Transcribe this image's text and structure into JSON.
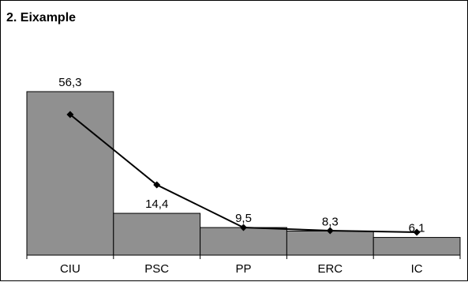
{
  "chart_data": {
    "type": "bar",
    "title": "2. Eixample",
    "categories": [
      "CIU",
      "PSC",
      "PP",
      "ERC",
      "IC"
    ],
    "values": [
      56.3,
      14.4,
      9.5,
      8.3,
      6.1
    ],
    "value_labels": [
      "56,3",
      "14,4",
      "9,5",
      "8,3",
      "6,1"
    ],
    "line_values": [
      56.3,
      14.4,
      9.5,
      8.3,
      6.1
    ],
    "ylim": [
      0,
      70
    ],
    "grid": false,
    "legend": "none",
    "colors": {
      "bar_fill": "#909090",
      "bar_stroke": "#000000",
      "line": "#000000",
      "marker": "#000000"
    }
  }
}
